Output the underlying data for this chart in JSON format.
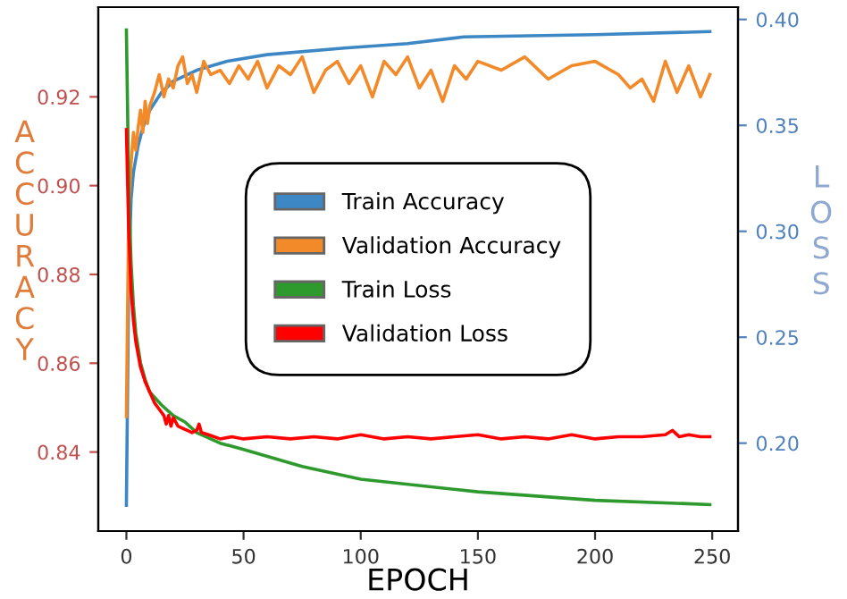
{
  "chart_data": {
    "type": "line",
    "xlabel": "EPOCH",
    "ylabel": "ACCURACY",
    "y2label": "LOSS",
    "xlim": [
      -12,
      261
    ],
    "xticks": [
      0,
      50,
      100,
      150,
      200,
      250
    ],
    "ylim": [
      0.8222,
      0.9402
    ],
    "yticks": [
      {
        "value": 0.84,
        "label": "0.84"
      },
      {
        "value": 0.86,
        "label": "0.86"
      },
      {
        "value": 0.88,
        "label": "0.88"
      },
      {
        "value": 0.9,
        "label": "0.90"
      },
      {
        "value": 0.92,
        "label": "0.92"
      }
    ],
    "y2lim": [
      0.1585,
      0.4058
    ],
    "y2ticks": [
      {
        "value": 0.2,
        "label": "0.20"
      },
      {
        "value": 0.25,
        "label": "0.25"
      },
      {
        "value": 0.3,
        "label": "0.30"
      },
      {
        "value": 0.35,
        "label": "0.35"
      },
      {
        "value": 0.4,
        "label": "0.40"
      }
    ],
    "grid": false,
    "legend": "center",
    "marker": "none",
    "line_style": "solid",
    "series": [
      {
        "name": "Train Accuracy",
        "color": "#3d87c4",
        "x": [
          0,
          1,
          2,
          3,
          5,
          7,
          10,
          15,
          20,
          30,
          43,
          60,
          93,
          120,
          144,
          200,
          249
        ],
        "values": [
          0.828,
          0.88,
          0.897,
          0.903,
          0.909,
          0.913,
          0.917,
          0.921,
          0.9235,
          0.926,
          0.928,
          0.9295,
          0.931,
          0.932,
          0.9335,
          0.934,
          0.9347
        ]
      },
      {
        "name": "Validation Accuracy",
        "color": "#f28a2a",
        "x": [
          0,
          1,
          2,
          3,
          4,
          5,
          6,
          7,
          8,
          9,
          10,
          12,
          14,
          16,
          18,
          20,
          22,
          24,
          26,
          28,
          30,
          33,
          36,
          40,
          44,
          48,
          52,
          56,
          60,
          65,
          70,
          75,
          80,
          85,
          90,
          95,
          100,
          105,
          110,
          115,
          120,
          125,
          130,
          135,
          140,
          145,
          150,
          160,
          170,
          180,
          190,
          200,
          210,
          215,
          220,
          225,
          230,
          235,
          240,
          245,
          249
        ],
        "values": [
          0.848,
          0.895,
          0.905,
          0.912,
          0.908,
          0.913,
          0.917,
          0.912,
          0.919,
          0.914,
          0.918,
          0.921,
          0.925,
          0.92,
          0.924,
          0.922,
          0.927,
          0.929,
          0.923,
          0.925,
          0.921,
          0.928,
          0.925,
          0.926,
          0.923,
          0.927,
          0.924,
          0.928,
          0.922,
          0.927,
          0.925,
          0.929,
          0.921,
          0.926,
          0.928,
          0.923,
          0.927,
          0.92,
          0.928,
          0.925,
          0.929,
          0.922,
          0.926,
          0.919,
          0.927,
          0.924,
          0.928,
          0.926,
          0.929,
          0.924,
          0.927,
          0.928,
          0.925,
          0.922,
          0.924,
          0.919,
          0.928,
          0.921,
          0.927,
          0.92,
          0.925
        ]
      },
      {
        "name": "Train Loss",
        "color": "#2e9a2e",
        "axis": "y2",
        "x": [
          0,
          1,
          2,
          3,
          4,
          6,
          8,
          10,
          15,
          20,
          25,
          30,
          40,
          50,
          75,
          100,
          150,
          200,
          249
        ],
        "values": [
          0.395,
          0.32,
          0.285,
          0.265,
          0.252,
          0.238,
          0.23,
          0.224,
          0.218,
          0.213,
          0.21,
          0.205,
          0.2,
          0.197,
          0.189,
          0.183,
          0.177,
          0.173,
          0.171
        ]
      },
      {
        "name": "Validation Loss",
        "color": "#ff0000",
        "axis": "y2",
        "x": [
          0,
          1,
          2,
          3,
          4,
          6,
          8,
          10,
          12,
          14,
          16,
          17,
          18,
          19,
          20,
          22,
          24,
          26,
          28,
          30,
          31,
          32,
          35,
          40,
          45,
          50,
          60,
          70,
          80,
          90,
          100,
          110,
          120,
          130,
          140,
          150,
          160,
          170,
          180,
          190,
          200,
          210,
          220,
          230,
          233,
          236,
          240,
          245,
          249
        ],
        "values": [
          0.348,
          0.3,
          0.272,
          0.258,
          0.248,
          0.236,
          0.229,
          0.224,
          0.219,
          0.216,
          0.213,
          0.209,
          0.213,
          0.208,
          0.212,
          0.208,
          0.207,
          0.206,
          0.205,
          0.206,
          0.209,
          0.205,
          0.204,
          0.202,
          0.203,
          0.202,
          0.203,
          0.202,
          0.203,
          0.202,
          0.204,
          0.202,
          0.203,
          0.202,
          0.203,
          0.204,
          0.202,
          0.203,
          0.202,
          0.204,
          0.202,
          0.203,
          0.203,
          0.204,
          0.206,
          0.203,
          0.204,
          0.203,
          0.203
        ]
      }
    ]
  }
}
